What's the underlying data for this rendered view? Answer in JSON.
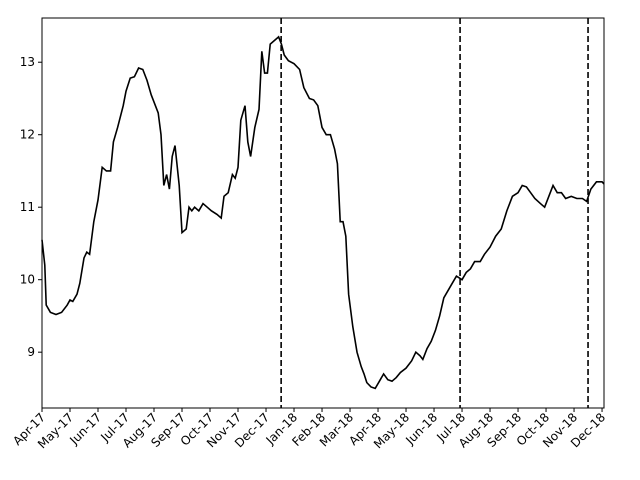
{
  "chart_data": {
    "type": "line",
    "x": [
      0,
      0.1,
      0.15,
      0.3,
      0.5,
      0.7,
      0.9,
      1.0,
      1.1,
      1.25,
      1.35,
      1.5,
      1.6,
      1.7,
      1.85,
      2.0,
      2.15,
      2.3,
      2.45,
      2.55,
      2.7,
      2.9,
      3.0,
      3.15,
      3.3,
      3.45,
      3.6,
      3.75,
      3.9,
      4.0,
      4.15,
      4.25,
      4.35,
      4.45,
      4.55,
      4.65,
      4.75,
      4.9,
      5.0,
      5.15,
      5.25,
      5.35,
      5.45,
      5.6,
      5.75,
      5.9,
      6.05,
      6.25,
      6.4,
      6.5,
      6.65,
      6.8,
      6.9,
      7.0,
      7.1,
      7.25,
      7.35,
      7.45,
      7.6,
      7.75,
      7.85,
      7.95,
      8.05,
      8.15,
      8.3,
      8.45,
      8.55,
      8.65,
      8.8,
      9.0,
      9.2,
      9.35,
      9.55,
      9.7,
      9.85,
      10.0,
      10.15,
      10.3,
      10.45,
      10.55,
      10.65,
      10.75,
      10.85,
      10.95,
      11.1,
      11.25,
      11.4,
      11.5,
      11.6,
      11.75,
      11.9,
      12.05,
      12.2,
      12.35,
      12.5,
      12.65,
      12.8,
      13.0,
      13.2,
      13.35,
      13.5,
      13.6,
      13.75,
      13.9,
      14.05,
      14.2,
      14.35,
      14.5,
      14.65,
      14.8,
      15.0,
      15.15,
      15.3,
      15.45,
      15.65,
      15.8,
      16.0,
      16.2,
      16.4,
      16.6,
      16.8,
      17.0,
      17.15,
      17.3,
      17.45,
      17.6,
      17.8,
      17.95,
      18.1,
      18.25,
      18.4,
      18.55,
      18.7,
      18.9,
      19.1,
      19.3,
      19.45,
      19.6,
      19.8,
      20.0,
      20.07
    ],
    "series": [
      {
        "color": "#000000",
        "values": [
          10.55,
          10.2,
          9.65,
          9.55,
          9.52,
          9.55,
          9.65,
          9.72,
          9.7,
          9.8,
          9.95,
          10.3,
          10.38,
          10.35,
          10.8,
          11.1,
          11.55,
          11.5,
          11.5,
          11.9,
          12.1,
          12.4,
          12.6,
          12.78,
          12.8,
          12.92,
          12.9,
          12.75,
          12.55,
          12.45,
          12.3,
          12.0,
          11.3,
          11.45,
          11.25,
          11.7,
          11.85,
          11.3,
          10.65,
          10.7,
          11.0,
          10.95,
          11.0,
          10.95,
          11.05,
          11.0,
          10.95,
          10.9,
          10.85,
          11.15,
          11.2,
          11.45,
          11.4,
          11.55,
          12.2,
          12.4,
          11.9,
          11.7,
          12.1,
          12.35,
          13.15,
          12.85,
          12.85,
          13.25,
          13.3,
          13.35,
          13.25,
          13.1,
          13.02,
          12.98,
          12.9,
          12.65,
          12.5,
          12.48,
          12.4,
          12.1,
          12.0,
          12.0,
          11.8,
          11.6,
          10.8,
          10.8,
          10.6,
          9.8,
          9.35,
          9.0,
          8.8,
          8.7,
          8.58,
          8.52,
          8.5,
          8.6,
          8.7,
          8.62,
          8.6,
          8.65,
          8.72,
          8.78,
          8.88,
          9.0,
          8.95,
          8.9,
          9.05,
          9.15,
          9.3,
          9.5,
          9.75,
          9.85,
          9.95,
          10.05,
          10.0,
          10.1,
          10.15,
          10.25,
          10.25,
          10.35,
          10.45,
          10.6,
          10.7,
          10.95,
          11.15,
          11.2,
          11.3,
          11.28,
          11.2,
          11.12,
          11.05,
          11.0,
          11.15,
          11.3,
          11.2,
          11.2,
          11.12,
          11.15,
          11.12,
          11.12,
          11.08,
          11.25,
          11.35,
          11.35,
          11.32
        ]
      }
    ],
    "vlines": [
      8.54,
      14.93,
      19.5
    ],
    "xlim": [
      0,
      20.07
    ],
    "xticks": [
      {
        "value": 0,
        "label": "Apr-17"
      },
      {
        "value": 1,
        "label": "May-17"
      },
      {
        "value": 2,
        "label": "Jun-17"
      },
      {
        "value": 3,
        "label": "Jul-17"
      },
      {
        "value": 4,
        "label": "Aug-17"
      },
      {
        "value": 5,
        "label": "Sep-17"
      },
      {
        "value": 6,
        "label": "Oct-17"
      },
      {
        "value": 7,
        "label": "Nov-17"
      },
      {
        "value": 8,
        "label": "Dec-17"
      },
      {
        "value": 9,
        "label": "Jan-18"
      },
      {
        "value": 10,
        "label": "Feb-18"
      },
      {
        "value": 11,
        "label": "Mar-18"
      },
      {
        "value": 12,
        "label": "Apr-18"
      },
      {
        "value": 13,
        "label": "May-18"
      },
      {
        "value": 14,
        "label": "Jun-18"
      },
      {
        "value": 15,
        "label": "Jul-18"
      },
      {
        "value": 16,
        "label": "Aug-18"
      },
      {
        "value": 17,
        "label": "Sep-18"
      },
      {
        "value": 18,
        "label": "Oct-18"
      },
      {
        "value": 19,
        "label": "Nov-18"
      },
      {
        "value": 20,
        "label": "Dec-18"
      }
    ],
    "ylim": [
      8.23,
      13.61
    ],
    "yticks": [
      9,
      10,
      11,
      12,
      13
    ]
  }
}
